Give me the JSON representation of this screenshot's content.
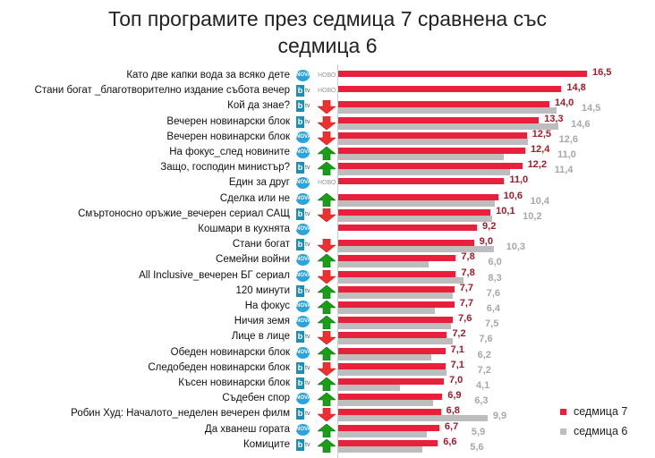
{
  "chart_data": {
    "type": "bar",
    "title": "Топ програмите през седмица 7 сравнена със седмица 6",
    "title_lines": [
      "Топ програмите през седмица 7 сравнена със",
      "седмица 6"
    ],
    "colors": {
      "седмица 7": "#e8203c",
      "седмица 6": "#bdbdbd"
    },
    "legend": {
      "position": "bottom-right",
      "entries": [
        "седмица 7",
        "седмица 6"
      ]
    },
    "new_label": "НОВО",
    "categories": [
      "Като две капки вода за всяко дете",
      "Стани богат _благотворително издание събота вечер",
      "Кой да знае?",
      "Вечерен новинарски блок",
      "Вечерен новинарски блок",
      "На фокус_след новините",
      "Защо, господин министър?",
      "Един за друг",
      "Сделка или не",
      "Смъртоносно оръжие_вечерен сериал САЩ",
      "Кошмари в кухнята",
      "Стани богат",
      "Семейни войни",
      "All Inclusive_вечерен БГ сериал",
      "120 минути",
      "На фокус",
      "Ничия земя",
      "Лице в лице",
      "Обеден новинарски блок",
      "Следобеден новинарски блок",
      "Късен новинарски блок",
      "Съдебен спор",
      "Робин Худ:  Началото_неделен вечерен филм",
      "Да хванеш гората",
      "Комиците"
    ],
    "channels": [
      "nova",
      "btv",
      "btv",
      "btv",
      "nova",
      "nova",
      "btv",
      "nova",
      "nova",
      "btv",
      "nova",
      "btv",
      "nova",
      "nova",
      "btv",
      "nova",
      "nova",
      "btv",
      "nova",
      "btv",
      "btv",
      "nova",
      "btv",
      "nova",
      "btv"
    ],
    "trend": [
      "new",
      "new",
      "down",
      "down",
      "down",
      "up",
      "up",
      "new",
      "up",
      "down",
      "none",
      "down",
      "up",
      "down",
      "up",
      "up",
      "up",
      "down",
      "up",
      "down",
      "up",
      "up",
      "down",
      "up",
      "up"
    ],
    "series": [
      {
        "name": "седмица 7",
        "values": [
          16.5,
          14.8,
          14.0,
          13.3,
          12.5,
          12.4,
          12.2,
          11.0,
          10.6,
          10.1,
          9.2,
          9.0,
          7.8,
          7.8,
          7.7,
          7.7,
          7.6,
          7.2,
          7.1,
          7.1,
          7.0,
          6.9,
          6.8,
          6.7,
          6.6
        ]
      },
      {
        "name": "седмица 6",
        "values": [
          null,
          null,
          14.5,
          14.6,
          12.6,
          11.0,
          11.4,
          null,
          10.4,
          10.2,
          null,
          10.3,
          6.0,
          8.3,
          7.6,
          6.4,
          7.5,
          7.6,
          6.2,
          7.2,
          4.1,
          6.3,
          9.9,
          5.9,
          5.6
        ]
      }
    ],
    "xlim": [
      0,
      17
    ]
  }
}
